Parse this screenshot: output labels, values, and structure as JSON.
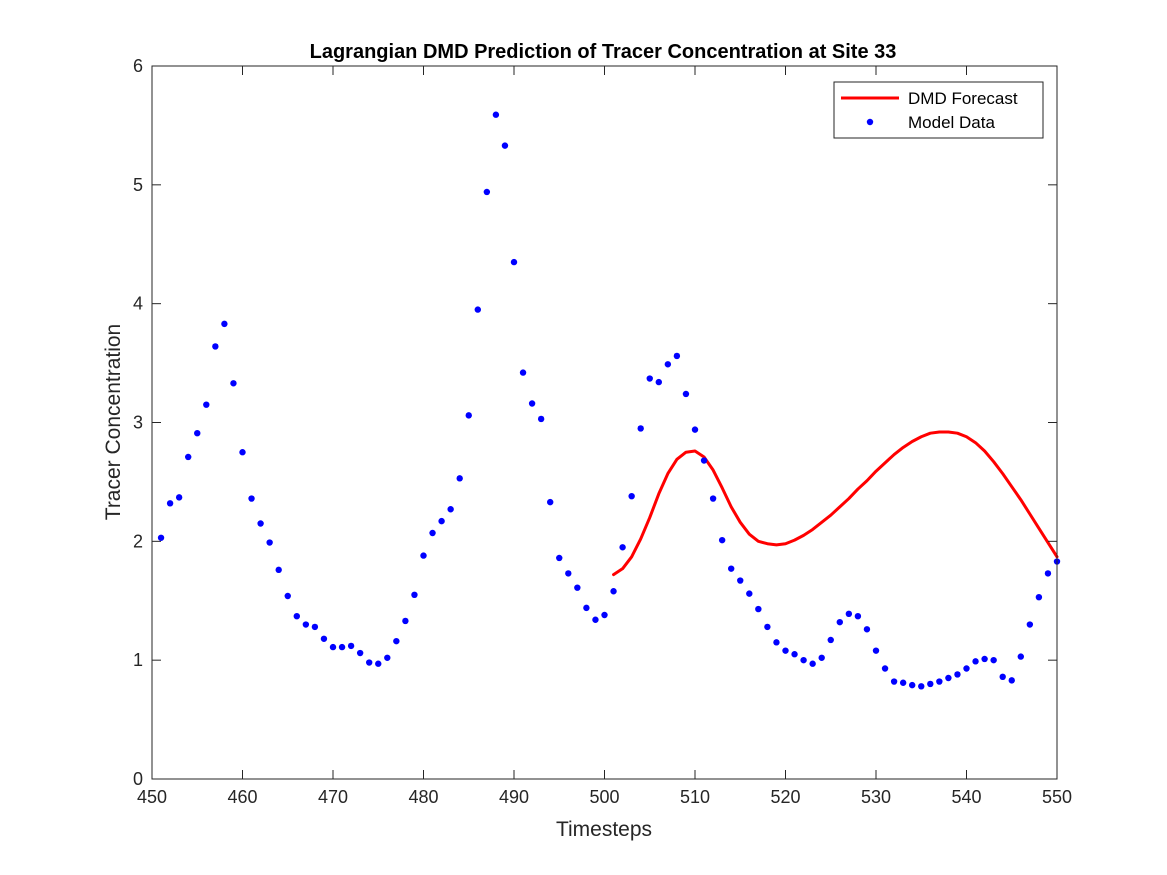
{
  "chart_data": {
    "type": "line",
    "title": "Lagrangian DMD Prediction of Tracer Concentration at Site 33",
    "xlabel": "Timesteps",
    "ylabel": "Tracer Concentration",
    "xlim": [
      450,
      550
    ],
    "ylim": [
      0,
      6
    ],
    "xticks": [
      450,
      460,
      470,
      480,
      490,
      500,
      510,
      520,
      530,
      540,
      550
    ],
    "yticks": [
      0,
      1,
      2,
      3,
      4,
      5,
      6
    ],
    "grid": false,
    "legend_position": "top-right",
    "series": [
      {
        "name": "DMD Forecast",
        "style": "line",
        "color": "#ff0000",
        "x": [
          501,
          502,
          503,
          504,
          505,
          506,
          507,
          508,
          509,
          510,
          511,
          512,
          513,
          514,
          515,
          516,
          517,
          518,
          519,
          520,
          521,
          522,
          523,
          524,
          525,
          526,
          527,
          528,
          529,
          530,
          531,
          532,
          533,
          534,
          535,
          536,
          537,
          538,
          539,
          540,
          541,
          542,
          543,
          544,
          545,
          546,
          547,
          548,
          549,
          550
        ],
        "y": [
          1.72,
          1.77,
          1.87,
          2.02,
          2.2,
          2.4,
          2.57,
          2.69,
          2.75,
          2.76,
          2.71,
          2.6,
          2.45,
          2.29,
          2.16,
          2.06,
          2.0,
          1.98,
          1.97,
          1.98,
          2.01,
          2.05,
          2.1,
          2.16,
          2.22,
          2.29,
          2.36,
          2.44,
          2.51,
          2.59,
          2.66,
          2.73,
          2.79,
          2.84,
          2.88,
          2.91,
          2.92,
          2.92,
          2.91,
          2.88,
          2.83,
          2.76,
          2.67,
          2.57,
          2.46,
          2.35,
          2.23,
          2.11,
          1.99,
          1.87
        ]
      },
      {
        "name": "Model Data",
        "style": "marker",
        "color": "#0000ff",
        "x": [
          451,
          452,
          453,
          454,
          455,
          456,
          457,
          458,
          459,
          460,
          461,
          462,
          463,
          464,
          465,
          466,
          467,
          468,
          469,
          470,
          471,
          472,
          473,
          474,
          475,
          476,
          477,
          478,
          479,
          480,
          481,
          482,
          483,
          484,
          485,
          486,
          487,
          488,
          489,
          490,
          491,
          492,
          493,
          494,
          495,
          496,
          497,
          498,
          499,
          500,
          501,
          502,
          503,
          504,
          505,
          506,
          507,
          508,
          509,
          510,
          511,
          512,
          513,
          514,
          515,
          516,
          517,
          518,
          519,
          520,
          521,
          522,
          523,
          524,
          525,
          526,
          527,
          528,
          529,
          530,
          531,
          532,
          533,
          534,
          535,
          536,
          537,
          538,
          539,
          540,
          541,
          542,
          543,
          544,
          545,
          546,
          547,
          548,
          549,
          550
        ],
        "y": [
          2.03,
          2.32,
          2.37,
          2.71,
          2.91,
          3.15,
          3.64,
          3.83,
          3.33,
          2.75,
          2.36,
          2.15,
          1.99,
          1.76,
          1.54,
          1.37,
          1.3,
          1.28,
          1.18,
          1.11,
          1.11,
          1.12,
          1.06,
          0.98,
          0.97,
          1.02,
          1.16,
          1.33,
          1.55,
          1.88,
          2.07,
          2.17,
          2.27,
          2.53,
          3.06,
          3.95,
          4.94,
          5.59,
          5.33,
          4.35,
          3.42,
          3.16,
          3.03,
          2.33,
          1.86,
          1.73,
          1.61,
          1.44,
          1.34,
          1.38,
          1.58,
          1.95,
          2.38,
          2.95,
          3.37,
          3.34,
          3.49,
          3.56,
          3.24,
          2.94,
          2.68,
          2.36,
          2.01,
          1.77,
          1.67,
          1.56,
          1.43,
          1.28,
          1.15,
          1.08,
          1.05,
          1.0,
          0.97,
          1.02,
          1.17,
          1.32,
          1.39,
          1.37,
          1.26,
          1.08,
          0.93,
          0.82,
          0.81,
          0.79,
          0.78,
          0.8,
          0.82,
          0.85,
          0.88,
          0.93,
          0.99,
          1.01,
          1.0,
          0.86,
          0.83,
          1.03,
          1.3,
          1.53,
          1.73,
          1.83
        ]
      }
    ]
  }
}
